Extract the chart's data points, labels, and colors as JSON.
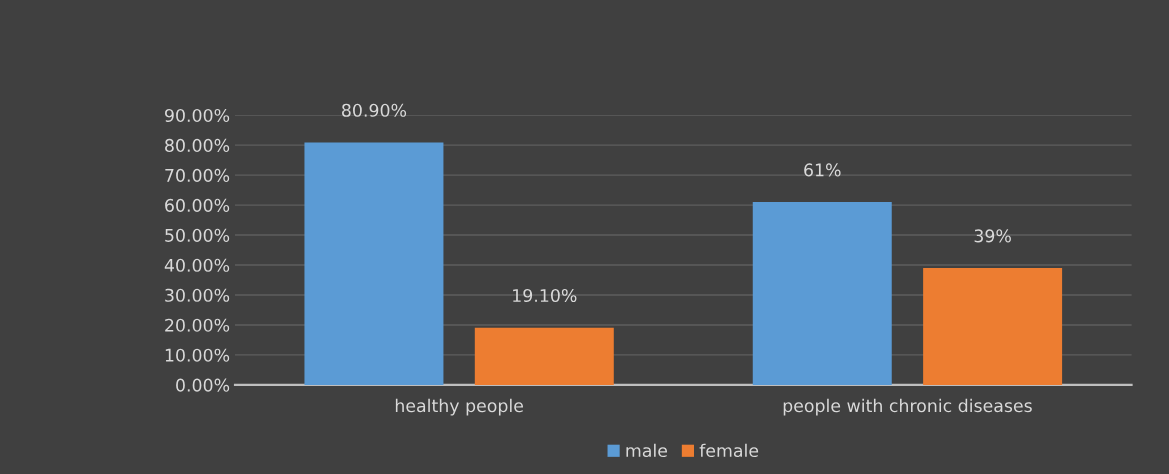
{
  "chart_data": {
    "type": "bar",
    "categories": [
      "healthy people",
      "people with chronic diseases"
    ],
    "series": [
      {
        "name": "male",
        "color": "#5b9bd5",
        "values": [
          80.9,
          61
        ],
        "value_labels": [
          "80.90%",
          "61%"
        ]
      },
      {
        "name": "female",
        "color": "#ed7d31",
        "values": [
          19.1,
          39
        ],
        "value_labels": [
          "19.10%",
          "39%"
        ]
      }
    ],
    "ylim": [
      0,
      90
    ],
    "yticks": [
      {
        "value": 0,
        "label": "0.00%"
      },
      {
        "value": 10,
        "label": "10.00%"
      },
      {
        "value": 20,
        "label": "20.00%"
      },
      {
        "value": 30,
        "label": "30.00%"
      },
      {
        "value": 40,
        "label": "40.00%"
      },
      {
        "value": 50,
        "label": "50.00%"
      },
      {
        "value": 60,
        "label": "60.00%"
      },
      {
        "value": 70,
        "label": "70.00%"
      },
      {
        "value": 80,
        "label": "80.00%"
      },
      {
        "value": 90,
        "label": "90.00%"
      }
    ],
    "grid": "y",
    "legend": "bottom"
  }
}
